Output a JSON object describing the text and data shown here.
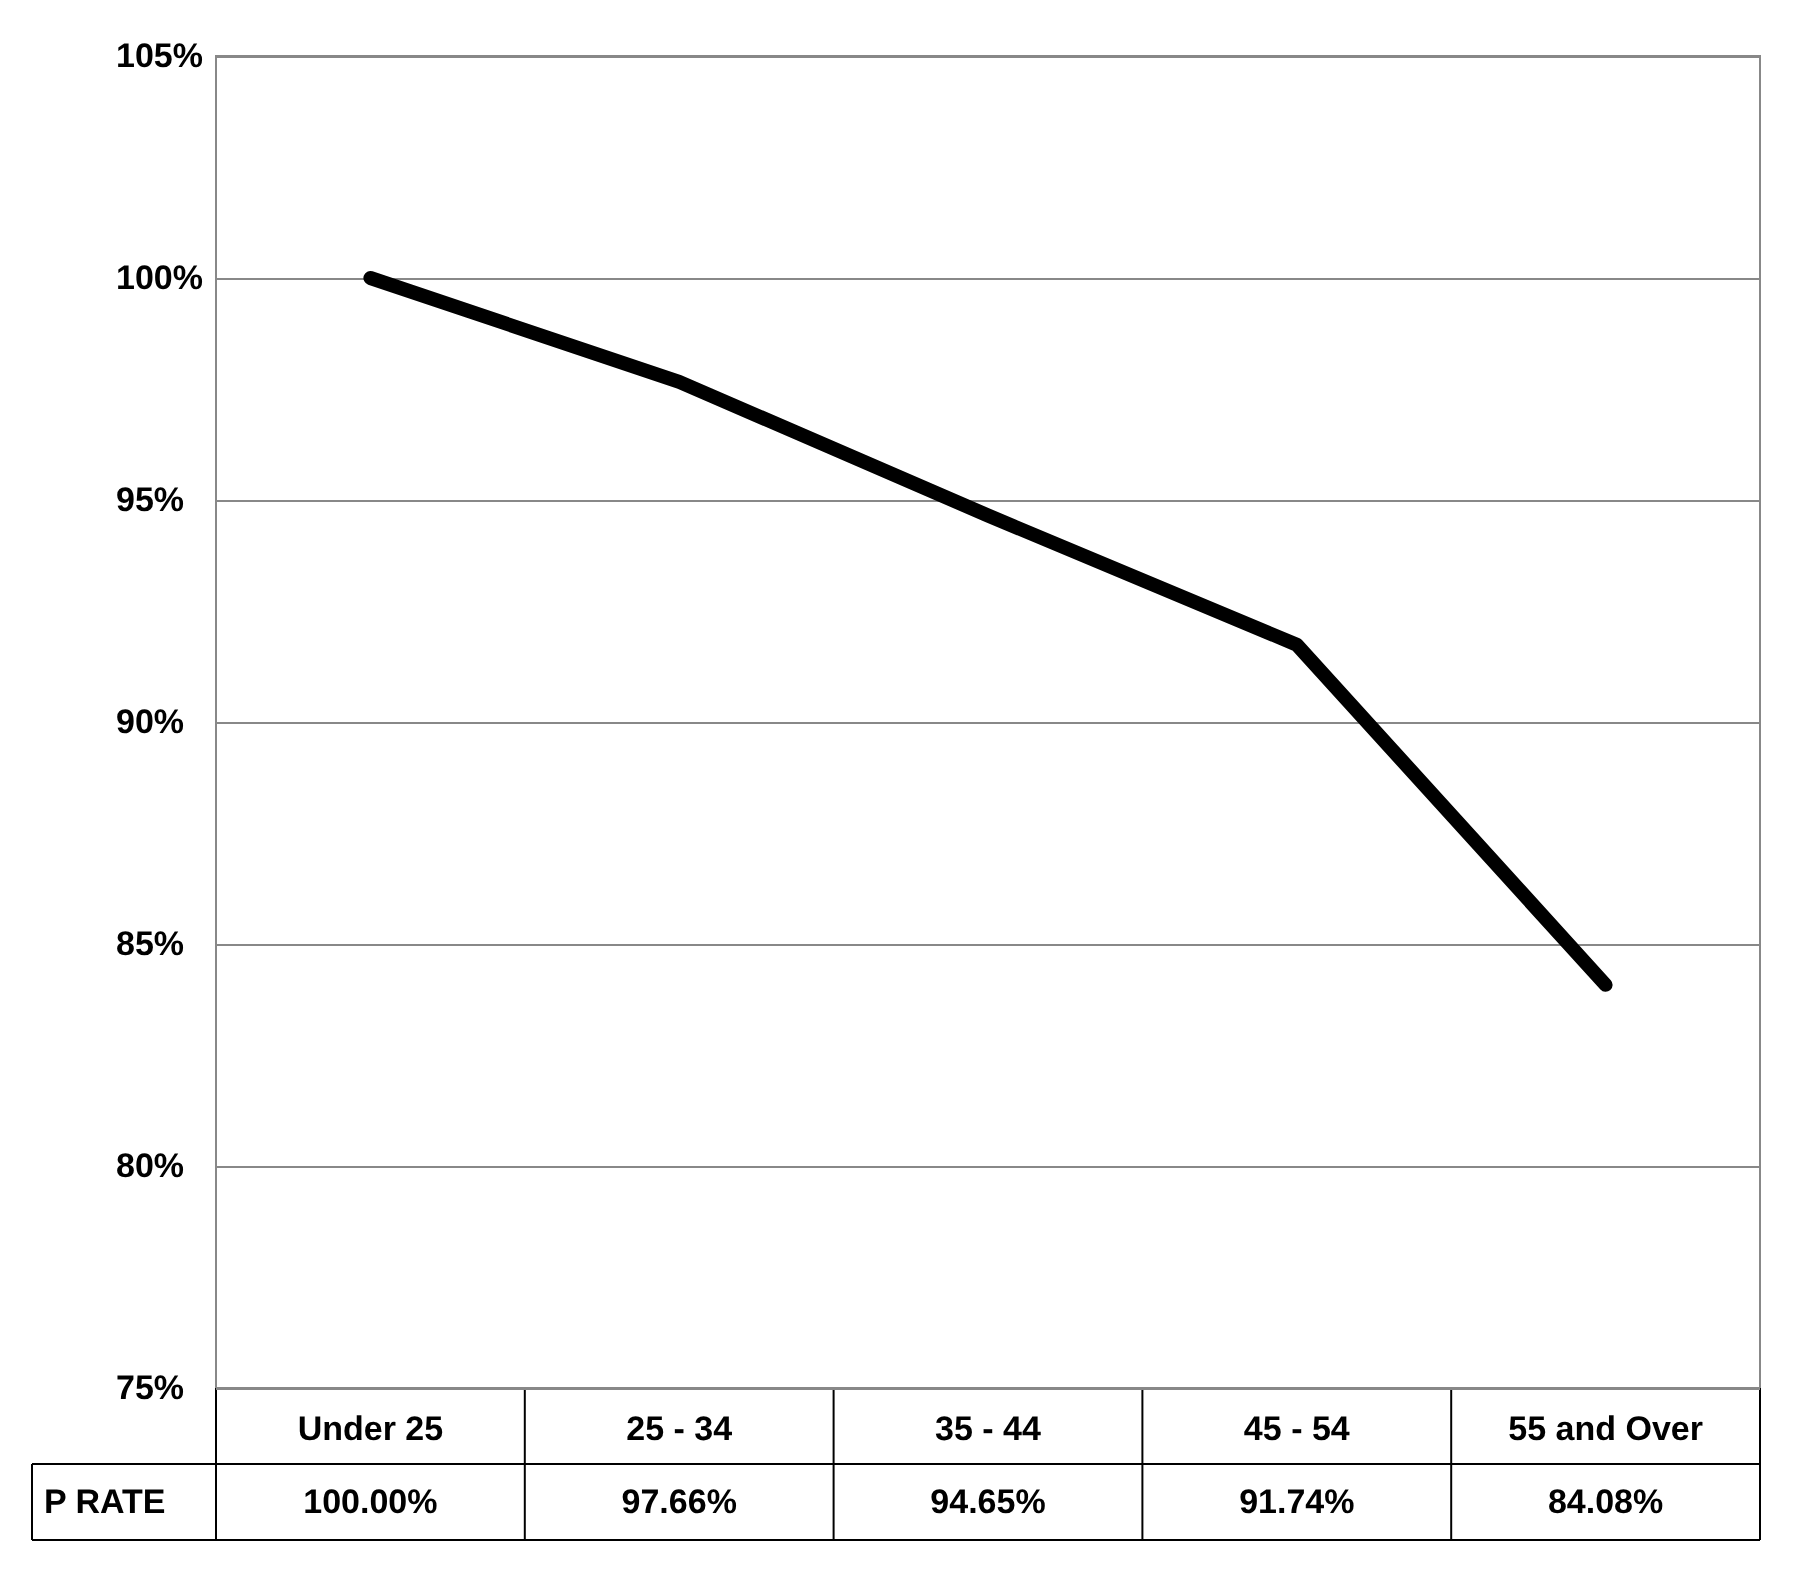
{
  "chart_data": {
    "type": "line",
    "categories": [
      "Under 25",
      "25 - 34",
      "35 - 44",
      "45 - 54",
      "55 and Over"
    ],
    "series": [
      {
        "name": "P RATE",
        "color": "#000000",
        "values": [
          100,
          97.66,
          94.65,
          91.74,
          84.08
        ],
        "value_labels": [
          "100.00%",
          "97.66%",
          "94.65%",
          "91.74%",
          "84.08%"
        ]
      }
    ],
    "ylim": [
      75,
      105
    ],
    "yticks": [
      {
        "value": 75,
        "label": "75%"
      },
      {
        "value": 80,
        "label": "80%"
      },
      {
        "value": 85,
        "label": "85%"
      },
      {
        "value": 90,
        "label": "90%"
      },
      {
        "value": 95,
        "label": "95%"
      },
      {
        "value": 100,
        "label": "100%"
      },
      {
        "value": 105,
        "label": "105%"
      }
    ],
    "grid": "y",
    "legend": "bottom left",
    "marker": "none",
    "line_style": "solid"
  }
}
